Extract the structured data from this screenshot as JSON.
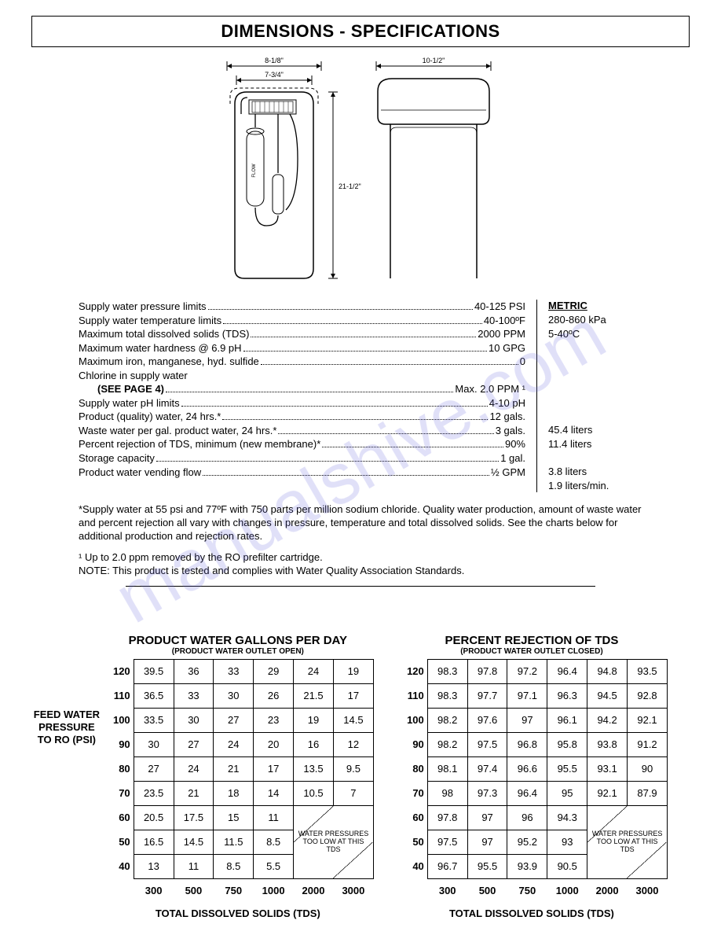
{
  "title": "DIMENSIONS - SPECIFICATIONS",
  "diagram": {
    "dim_top_outer": "8-1/8\"",
    "dim_top_inner": "7-3/4\"",
    "dim_right": "10-1/2\"",
    "dim_height": "21-1/2\"",
    "flow_label": "FLOW"
  },
  "specs": {
    "metric_header": "METRIC",
    "rows": [
      {
        "label": "Supply water pressure limits",
        "value": "40-125 PSI",
        "metric": "280-860 kPa"
      },
      {
        "label": "Supply water temperature limits",
        "value": "40-100ºF",
        "metric": "5-40ºC"
      },
      {
        "label": "Maximum total dissolved solids (TDS)",
        "value": "2000 PPM",
        "metric": ""
      },
      {
        "label": "Maximum water hardness @ 6.9 pH",
        "value": "10 GPG",
        "metric": ""
      },
      {
        "label": "Maximum iron, manganese, hyd. sulfide",
        "value": "0",
        "metric": ""
      },
      {
        "label": "Chlorine in supply water",
        "value": "",
        "metric": "",
        "nodots": true
      },
      {
        "label": "(SEE PAGE 4)",
        "value": "Max. 2.0 PPM ¹",
        "metric": "",
        "indent": true
      },
      {
        "label": "Supply water pH limits",
        "value": "4-10 pH",
        "metric": ""
      },
      {
        "label": "Product (quality) water, 24 hrs.*",
        "value": "12 gals.",
        "metric": "45.4 liters"
      },
      {
        "label": "Waste water per gal. product water, 24 hrs.*",
        "value": "3 gals.",
        "metric": "11.4 liters"
      },
      {
        "label": "Percent rejection of TDS, minimum (new membrane)*",
        "value": "90%",
        "metric": ""
      },
      {
        "label": "Storage capacity",
        "value": "1 gal.",
        "metric": "3.8 liters"
      },
      {
        "label": "Product water vending flow",
        "value": "½ GPM",
        "metric": "1.9 liters/min."
      }
    ]
  },
  "footnotes": {
    "f1": "*Supply water at 55 psi and 77ºF with 750 parts per million sodium chloride. Quality water production, amount of waste water and percent rejection all vary with changes in pressure, temperature and total dissolved solids. See the charts below for additional production and rejection rates.",
    "f2": "¹ Up to 2.0 ppm removed by the RO prefilter cartridge.",
    "f3": "NOTE: This product is tested and complies with Water Quality Association Standards."
  },
  "side_label": "FEED WATER PRESSURE TO RO (PSI)",
  "charts": {
    "left": {
      "title": "PRODUCT WATER GALLONS PER DAY",
      "sub": "(PRODUCT WATER OUTLET OPEN)",
      "row_headers": [
        "120",
        "110",
        "100",
        "90",
        "80",
        "70",
        "60",
        "50",
        "40"
      ],
      "col_headers": [
        "300",
        "500",
        "750",
        "1000",
        "2000",
        "3000"
      ],
      "data": [
        [
          "39.5",
          "36",
          "33",
          "29",
          "24",
          "19"
        ],
        [
          "36.5",
          "33",
          "30",
          "26",
          "21.5",
          "17"
        ],
        [
          "33.5",
          "30",
          "27",
          "23",
          "19",
          "14.5"
        ],
        [
          "30",
          "27",
          "24",
          "20",
          "16",
          "12"
        ],
        [
          "27",
          "24",
          "21",
          "17",
          "13.5",
          "9.5"
        ],
        [
          "23.5",
          "21",
          "18",
          "14",
          "10.5",
          "7"
        ],
        [
          "20.5",
          "17.5",
          "15",
          "11"
        ],
        [
          "16.5",
          "14.5",
          "11.5",
          "8.5"
        ],
        [
          "13",
          "11",
          "8.5",
          "5.5"
        ]
      ],
      "merged_note": "WATER PRESSURES TOO LOW AT THIS TDS",
      "x_label": "TOTAL DISSOLVED SOLIDS (TDS)"
    },
    "right": {
      "title": "PERCENT REJECTION OF TDS",
      "sub": "(PRODUCT WATER OUTLET CLOSED)",
      "row_headers": [
        "120",
        "110",
        "100",
        "90",
        "80",
        "70",
        "60",
        "50",
        "40"
      ],
      "col_headers": [
        "300",
        "500",
        "750",
        "1000",
        "2000",
        "3000"
      ],
      "data": [
        [
          "98.3",
          "97.8",
          "97.2",
          "96.4",
          "94.8",
          "93.5"
        ],
        [
          "98.3",
          "97.7",
          "97.1",
          "96.3",
          "94.5",
          "92.8"
        ],
        [
          "98.2",
          "97.6",
          "97",
          "96.1",
          "94.2",
          "92.1"
        ],
        [
          "98.2",
          "97.5",
          "96.8",
          "95.8",
          "93.8",
          "91.2"
        ],
        [
          "98.1",
          "97.4",
          "96.6",
          "95.5",
          "93.1",
          "90"
        ],
        [
          "98",
          "97.3",
          "96.4",
          "95",
          "92.1",
          "87.9"
        ],
        [
          "97.8",
          "97",
          "96",
          "94.3"
        ],
        [
          "97.5",
          "97",
          "95.2",
          "93"
        ],
        [
          "96.7",
          "95.5",
          "93.9",
          "90.5"
        ]
      ],
      "merged_note": "WATER PRESSURES TOO LOW AT THIS TDS",
      "x_label": "TOTAL DISSOLVED SOLIDS (TDS)"
    }
  },
  "watermark": "manualshive.com"
}
